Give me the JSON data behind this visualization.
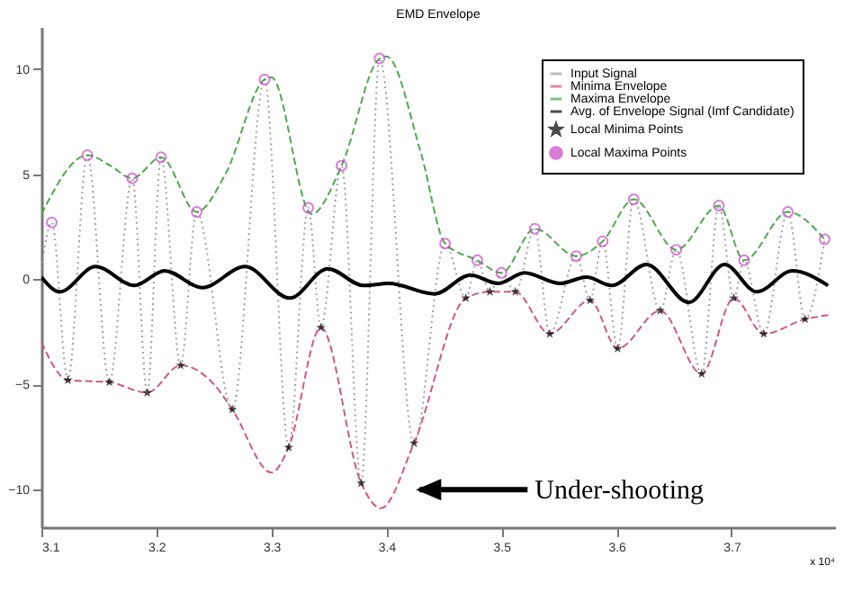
{
  "chart_data": {
    "type": "line",
    "title": "EMD Envelope",
    "xlim": [
      3.1,
      3.79
    ],
    "ylim": [
      -11.8,
      12
    ],
    "xticks": [
      3.1,
      3.2,
      3.3,
      3.4,
      3.5,
      3.6,
      3.7
    ],
    "yticks": [
      -10,
      -5,
      0,
      5,
      10
    ],
    "grid": false,
    "legend": "top right",
    "annotations": [
      "Under-shooting",
      "x 10⁴"
    ],
    "series": [
      {
        "name": "Input Signal",
        "color": "#a0a0a0",
        "line_style": "dotted",
        "x": [
          3.1,
          3.109,
          3.123,
          3.14,
          3.159,
          3.179,
          3.192,
          3.204,
          3.221,
          3.235,
          3.266,
          3.294,
          3.315,
          3.332,
          3.343,
          3.361,
          3.378,
          3.394,
          3.424,
          3.451,
          3.469,
          3.479,
          3.49,
          3.5,
          3.512,
          3.529,
          3.542,
          3.565,
          3.577,
          3.588,
          3.601,
          3.615,
          3.638,
          3.652,
          3.674,
          3.689,
          3.702,
          3.711,
          3.728,
          3.749,
          3.764,
          3.781
        ],
        "values": [
          0.5,
          2.7,
          -4.8,
          5.9,
          -4.9,
          4.8,
          -5.4,
          5.8,
          -4.1,
          3.2,
          -6.2,
          9.5,
          -8.0,
          3.4,
          -2.3,
          5.4,
          -9.7,
          10.5,
          -7.8,
          1.7,
          -0.9,
          0.9,
          -0.6,
          0.3,
          -0.6,
          2.4,
          -2.6,
          1.1,
          -1.0,
          1.8,
          -3.3,
          3.8,
          -1.5,
          1.4,
          -4.5,
          3.5,
          -0.9,
          0.9,
          -2.6,
          3.2,
          -1.9,
          1.9
        ]
      },
      {
        "name": "Minima Envelope",
        "color": "#d05a7a",
        "line_style": "dashed",
        "x": [
          3.1,
          3.123,
          3.159,
          3.192,
          3.221,
          3.25,
          3.266,
          3.3,
          3.315,
          3.343,
          3.378,
          3.395,
          3.424,
          3.469,
          3.49,
          3.512,
          3.542,
          3.577,
          3.601,
          3.638,
          3.674,
          3.702,
          3.728,
          3.764,
          3.785
        ],
        "values": [
          -3.0,
          -4.8,
          -4.9,
          -5.4,
          -4.1,
          -5.0,
          -6.2,
          -9.2,
          -8.0,
          -2.3,
          -9.7,
          -10.9,
          -7.8,
          -0.9,
          -0.6,
          -0.6,
          -2.6,
          -1.0,
          -3.3,
          -1.5,
          -4.5,
          -0.9,
          -2.6,
          -1.9,
          -1.7
        ]
      },
      {
        "name": "Maxima Envelope",
        "color": "#4caa4c",
        "line_style": "dashed",
        "x": [
          3.1,
          3.14,
          3.16,
          3.179,
          3.204,
          3.235,
          3.26,
          3.294,
          3.3,
          3.335,
          3.361,
          3.394,
          3.4,
          3.43,
          3.451,
          3.479,
          3.5,
          3.529,
          3.565,
          3.588,
          3.615,
          3.652,
          3.689,
          3.711,
          3.749,
          3.781
        ],
        "values": [
          3.1,
          5.9,
          5.4,
          4.8,
          5.8,
          3.2,
          5.0,
          9.5,
          9.6,
          3.1,
          5.4,
          10.5,
          10.6,
          6.0,
          1.7,
          0.9,
          0.3,
          2.4,
          1.1,
          1.8,
          3.8,
          1.4,
          3.5,
          0.9,
          3.2,
          1.9
        ]
      },
      {
        "name": "Avg. of Envelope Signal (Imf Candidate)",
        "color": "#000000",
        "line_style": "solid",
        "x": [
          3.1,
          3.116,
          3.147,
          3.181,
          3.207,
          3.24,
          3.277,
          3.316,
          3.349,
          3.38,
          3.402,
          3.442,
          3.473,
          3.497,
          3.52,
          3.551,
          3.574,
          3.596,
          3.626,
          3.663,
          3.694,
          3.722,
          3.753,
          3.784
        ],
        "values": [
          0.1,
          -0.6,
          0.6,
          -0.3,
          0.4,
          -0.4,
          0.6,
          -0.9,
          0.5,
          -0.3,
          -0.2,
          -0.7,
          0.2,
          -0.2,
          0.3,
          -0.2,
          0.1,
          -0.3,
          0.7,
          -1.1,
          0.7,
          -0.6,
          0.4,
          -0.3
        ]
      },
      {
        "name": "Local Minima Points",
        "type": "scatter",
        "color": "#000000",
        "marker": "star",
        "x": [
          3.123,
          3.159,
          3.192,
          3.221,
          3.266,
          3.315,
          3.343,
          3.378,
          3.424,
          3.469,
          3.49,
          3.512,
          3.542,
          3.577,
          3.601,
          3.638,
          3.674,
          3.702,
          3.728,
          3.764
        ],
        "values": [
          -4.8,
          -4.9,
          -5.4,
          -4.1,
          -6.2,
          -8.0,
          -2.3,
          -9.7,
          -7.8,
          -0.9,
          -0.6,
          -0.6,
          -2.6,
          -1.0,
          -3.3,
          -1.5,
          -4.5,
          -0.9,
          -2.6,
          -1.9
        ]
      },
      {
        "name": "Local Maxima Points",
        "type": "scatter",
        "color": "#cc44cc",
        "marker": "circle",
        "x": [
          3.109,
          3.14,
          3.179,
          3.204,
          3.235,
          3.294,
          3.332,
          3.361,
          3.394,
          3.451,
          3.479,
          3.5,
          3.529,
          3.565,
          3.588,
          3.615,
          3.652,
          3.689,
          3.711,
          3.749,
          3.781
        ],
        "values": [
          2.7,
          5.9,
          4.8,
          5.8,
          3.2,
          9.5,
          3.4,
          5.4,
          10.5,
          1.7,
          0.9,
          0.3,
          2.4,
          1.1,
          1.8,
          3.8,
          1.4,
          3.5,
          0.9,
          3.2,
          1.9
        ]
      }
    ]
  }
}
